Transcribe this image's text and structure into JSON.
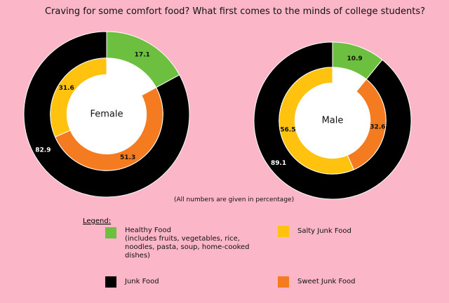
{
  "title": "Craving for some comfort food? What first comes to the minds of college students?",
  "note": "(All numbers are given in percentage)",
  "legend": {
    "title": "Legend:",
    "items": [
      {
        "name": "Healthy Food",
        "detail": "(includes fruits, vegetables, rice, noodles, pasta, soup, home-cooked dishes)",
        "color": "#6cbf3f"
      },
      {
        "name": "Junk Food",
        "color": "#000000"
      },
      {
        "name": "Salty Junk Food",
        "color": "#ffc20e"
      },
      {
        "name": "Sweet Junk Food",
        "color": "#f47b20"
      }
    ]
  },
  "chart_data": [
    {
      "type": "donut",
      "label": "Female",
      "outer": [
        17.1,
        82.9
      ],
      "inner": [
        31.6,
        51.3
      ]
    },
    {
      "type": "donut",
      "label": "Male",
      "outer": [
        10.9,
        89.1
      ],
      "inner": [
        56.5,
        32.6
      ]
    }
  ]
}
